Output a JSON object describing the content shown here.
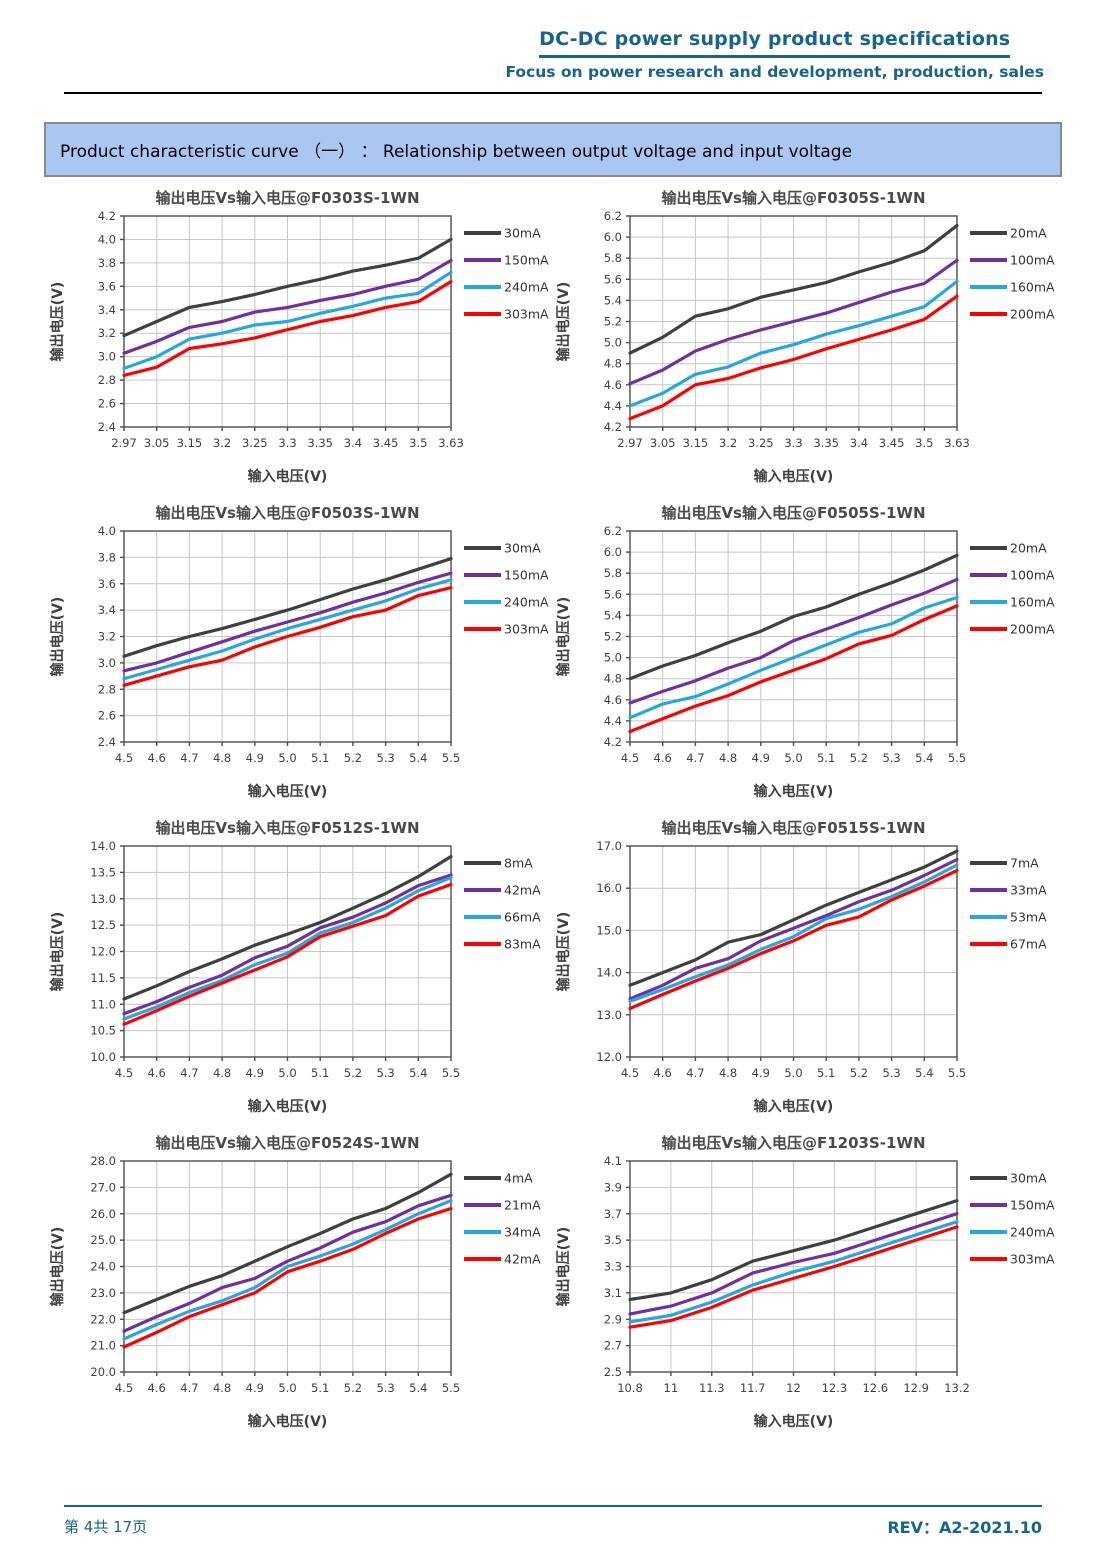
{
  "page": {
    "accent_color": "#17648D",
    "banner_bg_color": "#A9C7F1",
    "header": {
      "title": "DC-DC power supply product specifications",
      "subtitle": "Focus on power research and development, production, sales"
    },
    "banner": {
      "text": "Product characteristic curve （一） ： Relationship between output voltage and input voltage"
    },
    "footer": {
      "page_info": "第 4共 17页",
      "rev": "REV：A2-2021.10"
    }
  },
  "series_colors": {
    "black": "#3f3f3f",
    "purple": "#7030A0",
    "cyan": "#25A7E0",
    "red": "#FF0000"
  },
  "chart_data": [
    {
      "id": "F0303S-1WN",
      "type": "line",
      "title": "输出电压Vs输入电压@F0303S-1WN",
      "xlabel": "输入电压(V)",
      "ylabel": "输出电压(V)",
      "legend_position": "right",
      "grid": true,
      "x_ticks": [
        "2.97",
        "3.05",
        "3.15",
        "3.2",
        "3.25",
        "3.3",
        "3.35",
        "3.4",
        "3.45",
        "3.5",
        "3.63"
      ],
      "ylim": [
        2.4,
        4.2
      ],
      "y_step": 0.2,
      "y_decimals": 1,
      "series": [
        {
          "name": "30mA",
          "color": "#3f3f3f",
          "values": [
            3.18,
            3.3,
            3.42,
            3.47,
            3.53,
            3.6,
            3.66,
            3.73,
            3.78,
            3.84,
            4.0
          ]
        },
        {
          "name": "150mA",
          "color": "#7030A0",
          "values": [
            3.03,
            3.13,
            3.25,
            3.3,
            3.38,
            3.42,
            3.48,
            3.53,
            3.6,
            3.66,
            3.82
          ]
        },
        {
          "name": "240mA",
          "color": "#25A7E0",
          "values": [
            2.9,
            3.0,
            3.15,
            3.2,
            3.27,
            3.3,
            3.37,
            3.43,
            3.5,
            3.54,
            3.72
          ]
        },
        {
          "name": "303mA",
          "color": "#FF0000",
          "values": [
            2.84,
            2.91,
            3.07,
            3.11,
            3.16,
            3.23,
            3.3,
            3.35,
            3.42,
            3.47,
            3.64
          ]
        }
      ]
    },
    {
      "id": "F0305S-1WN",
      "type": "line",
      "title": "输出电压Vs输入电压@F0305S-1WN",
      "xlabel": "输入电压(V)",
      "ylabel": "输出电压(V)",
      "legend_position": "right",
      "grid": true,
      "x_ticks": [
        "2.97",
        "3.05",
        "3.15",
        "3.2",
        "3.25",
        "3.3",
        "3.35",
        "3.4",
        "3.45",
        "3.5",
        "3.63"
      ],
      "ylim": [
        4.2,
        6.2
      ],
      "y_step": 0.2,
      "y_decimals": 1,
      "series": [
        {
          "name": "20mA",
          "color": "#3f3f3f",
          "values": [
            4.9,
            5.05,
            5.25,
            5.32,
            5.43,
            5.5,
            5.57,
            5.67,
            5.76,
            5.87,
            6.11
          ]
        },
        {
          "name": "100mA",
          "color": "#7030A0",
          "values": [
            4.61,
            4.74,
            4.92,
            5.03,
            5.12,
            5.2,
            5.28,
            5.38,
            5.48,
            5.56,
            5.78
          ]
        },
        {
          "name": "160mA",
          "color": "#25A7E0",
          "values": [
            4.4,
            4.52,
            4.7,
            4.77,
            4.9,
            4.98,
            5.08,
            5.16,
            5.25,
            5.34,
            5.58
          ]
        },
        {
          "name": "200mA",
          "color": "#FF0000",
          "values": [
            4.28,
            4.4,
            4.6,
            4.66,
            4.76,
            4.84,
            4.94,
            5.03,
            5.12,
            5.22,
            5.44
          ]
        }
      ]
    },
    {
      "id": "F0503S-1WN",
      "type": "line",
      "title": "输出电压Vs输入电压@F0503S-1WN",
      "xlabel": "输入电压(V)",
      "ylabel": "输出电压(V)",
      "legend_position": "right",
      "grid": true,
      "x_ticks": [
        "4.5",
        "4.6",
        "4.7",
        "4.8",
        "4.9",
        "5.0",
        "5.1",
        "5.2",
        "5.3",
        "5.4",
        "5.5"
      ],
      "ylim": [
        2.4,
        4.0
      ],
      "y_step": 0.2,
      "y_decimals": 1,
      "series": [
        {
          "name": "30mA",
          "color": "#3f3f3f",
          "values": [
            3.05,
            3.13,
            3.2,
            3.26,
            3.33,
            3.4,
            3.48,
            3.56,
            3.63,
            3.71,
            3.79
          ]
        },
        {
          "name": "150mA",
          "color": "#7030A0",
          "values": [
            2.94,
            3.0,
            3.08,
            3.16,
            3.24,
            3.31,
            3.38,
            3.46,
            3.53,
            3.61,
            3.68
          ]
        },
        {
          "name": "240mA",
          "color": "#25A7E0",
          "values": [
            2.88,
            2.95,
            3.02,
            3.09,
            3.18,
            3.26,
            3.33,
            3.4,
            3.47,
            3.56,
            3.63
          ]
        },
        {
          "name": "303mA",
          "color": "#FF0000",
          "values": [
            2.83,
            2.9,
            2.97,
            3.02,
            3.12,
            3.2,
            3.27,
            3.35,
            3.4,
            3.51,
            3.57
          ]
        }
      ]
    },
    {
      "id": "F0505S-1WN",
      "type": "line",
      "title": "输出电压Vs输入电压@F0505S-1WN",
      "xlabel": "输入电压(V)",
      "ylabel": "输出电压(V)",
      "legend_position": "right",
      "grid": true,
      "x_ticks": [
        "4.5",
        "4.6",
        "4.7",
        "4.8",
        "4.9",
        "5.0",
        "5.1",
        "5.2",
        "5.3",
        "5.4",
        "5.5"
      ],
      "ylim": [
        4.2,
        6.2
      ],
      "y_step": 0.2,
      "y_decimals": 1,
      "series": [
        {
          "name": "20mA",
          "color": "#3f3f3f",
          "values": [
            4.8,
            4.92,
            5.02,
            5.14,
            5.25,
            5.39,
            5.48,
            5.6,
            5.71,
            5.83,
            5.97
          ]
        },
        {
          "name": "100mA",
          "color": "#7030A0",
          "values": [
            4.57,
            4.68,
            4.78,
            4.9,
            5.0,
            5.16,
            5.27,
            5.38,
            5.5,
            5.61,
            5.74
          ]
        },
        {
          "name": "160mA",
          "color": "#25A7E0",
          "values": [
            4.43,
            4.56,
            4.63,
            4.75,
            4.88,
            5.0,
            5.12,
            5.24,
            5.32,
            5.47,
            5.57
          ]
        },
        {
          "name": "200mA",
          "color": "#FF0000",
          "values": [
            4.3,
            4.42,
            4.54,
            4.64,
            4.77,
            4.88,
            4.99,
            5.13,
            5.21,
            5.36,
            5.49
          ]
        }
      ]
    },
    {
      "id": "F0512S-1WN",
      "type": "line",
      "title": "输出电压Vs输入电压@F0512S-1WN",
      "xlabel": "输入电压(V)",
      "ylabel": "输出电压(V)",
      "legend_position": "right",
      "grid": true,
      "x_ticks": [
        "4.5",
        "4.6",
        "4.7",
        "4.8",
        "4.9",
        "5.0",
        "5.1",
        "5.2",
        "5.3",
        "5.4",
        "5.5"
      ],
      "ylim": [
        10.0,
        14.0
      ],
      "y_step": 0.5,
      "y_decimals": 1,
      "series": [
        {
          "name": "8mA",
          "color": "#3f3f3f",
          "values": [
            11.1,
            11.35,
            11.62,
            11.86,
            12.12,
            12.33,
            12.55,
            12.82,
            13.1,
            13.42,
            13.8
          ]
        },
        {
          "name": "42mA",
          "color": "#7030A0",
          "values": [
            10.82,
            11.05,
            11.32,
            11.55,
            11.88,
            12.1,
            12.45,
            12.65,
            12.92,
            13.25,
            13.45
          ]
        },
        {
          "name": "66mA",
          "color": "#25A7E0",
          "values": [
            10.72,
            10.95,
            11.22,
            11.45,
            11.75,
            11.97,
            12.35,
            12.55,
            12.82,
            13.15,
            13.4
          ]
        },
        {
          "name": "83mA",
          "color": "#FF0000",
          "values": [
            10.62,
            10.88,
            11.15,
            11.4,
            11.65,
            11.9,
            12.28,
            12.48,
            12.68,
            13.05,
            13.27
          ]
        }
      ]
    },
    {
      "id": "F0515S-1WN",
      "type": "line",
      "title": "输出电压Vs输入电压@F0515S-1WN",
      "xlabel": "输入电压(V)",
      "ylabel": "输出电压(V)",
      "legend_position": "right",
      "grid": true,
      "x_ticks": [
        "4.5",
        "4.6",
        "4.7",
        "4.8",
        "4.9",
        "5.0",
        "5.1",
        "5.2",
        "5.3",
        "5.4",
        "5.5"
      ],
      "ylim": [
        12.0,
        17.0
      ],
      "y_step": 1.0,
      "y_decimals": 1,
      "series": [
        {
          "name": "7mA",
          "color": "#3f3f3f",
          "values": [
            13.7,
            14.0,
            14.3,
            14.72,
            14.9,
            15.25,
            15.6,
            15.9,
            16.2,
            16.5,
            16.88
          ]
        },
        {
          "name": "33mA",
          "color": "#7030A0",
          "values": [
            13.38,
            13.7,
            14.1,
            14.33,
            14.75,
            15.05,
            15.35,
            15.68,
            15.95,
            16.3,
            16.68
          ]
        },
        {
          "name": "53mA",
          "color": "#25A7E0",
          "values": [
            13.32,
            13.6,
            13.9,
            14.18,
            14.55,
            14.85,
            15.28,
            15.5,
            15.8,
            16.15,
            16.55
          ]
        },
        {
          "name": "67mA",
          "color": "#FF0000",
          "values": [
            13.15,
            13.48,
            13.8,
            14.1,
            14.45,
            14.75,
            15.12,
            15.32,
            15.72,
            16.05,
            16.42
          ]
        }
      ]
    },
    {
      "id": "F0524S-1WN",
      "type": "line",
      "title": "输出电压Vs输入电压@F0524S-1WN",
      "xlabel": "输入电压(V)",
      "ylabel": "输出电压(V)",
      "legend_position": "right",
      "grid": true,
      "x_ticks": [
        "4.5",
        "4.6",
        "4.7",
        "4.8",
        "4.9",
        "5.0",
        "5.1",
        "5.2",
        "5.3",
        "5.4",
        "5.5"
      ],
      "ylim": [
        20.0,
        28.0
      ],
      "y_step": 1.0,
      "y_decimals": 1,
      "series": [
        {
          "name": "4mA",
          "color": "#3f3f3f",
          "values": [
            22.25,
            22.75,
            23.25,
            23.65,
            24.2,
            24.75,
            25.25,
            25.8,
            26.2,
            26.8,
            27.5
          ]
        },
        {
          "name": "21mA",
          "color": "#7030A0",
          "values": [
            21.55,
            22.1,
            22.6,
            23.2,
            23.55,
            24.2,
            24.7,
            25.3,
            25.7,
            26.3,
            26.7
          ]
        },
        {
          "name": "34mA",
          "color": "#25A7E0",
          "values": [
            21.25,
            21.8,
            22.3,
            22.7,
            23.2,
            24.0,
            24.4,
            24.85,
            25.4,
            26.0,
            26.5
          ]
        },
        {
          "name": "42mA",
          "color": "#FF0000",
          "values": [
            20.95,
            21.5,
            22.1,
            22.55,
            23.0,
            23.8,
            24.2,
            24.65,
            25.25,
            25.8,
            26.2
          ]
        }
      ]
    },
    {
      "id": "F1203S-1WN",
      "type": "line",
      "title": "输出电压Vs输入电压@F1203S-1WN",
      "xlabel": "输入电压(V)",
      "ylabel": "输出电压(V)",
      "legend_position": "right",
      "grid": true,
      "x_ticks": [
        "10.8",
        "11",
        "11.3",
        "11.7",
        "12",
        "12.3",
        "12.6",
        "12.9",
        "13.2"
      ],
      "ylim": [
        2.5,
        4.1
      ],
      "y_step": 0.2,
      "y_decimals": 1,
      "series": [
        {
          "name": "30mA",
          "color": "#3f3f3f",
          "values": [
            3.05,
            3.1,
            3.2,
            3.34,
            3.42,
            3.5,
            3.6,
            3.7,
            3.8
          ]
        },
        {
          "name": "150mA",
          "color": "#7030A0",
          "values": [
            2.94,
            3.0,
            3.1,
            3.25,
            3.33,
            3.4,
            3.5,
            3.6,
            3.7
          ]
        },
        {
          "name": "240mA",
          "color": "#25A7E0",
          "values": [
            2.88,
            2.93,
            3.03,
            3.16,
            3.26,
            3.34,
            3.44,
            3.54,
            3.64
          ]
        },
        {
          "name": "303mA",
          "color": "#FF0000",
          "values": [
            2.84,
            2.89,
            2.99,
            3.12,
            3.21,
            3.3,
            3.4,
            3.5,
            3.6
          ]
        }
      ]
    }
  ]
}
